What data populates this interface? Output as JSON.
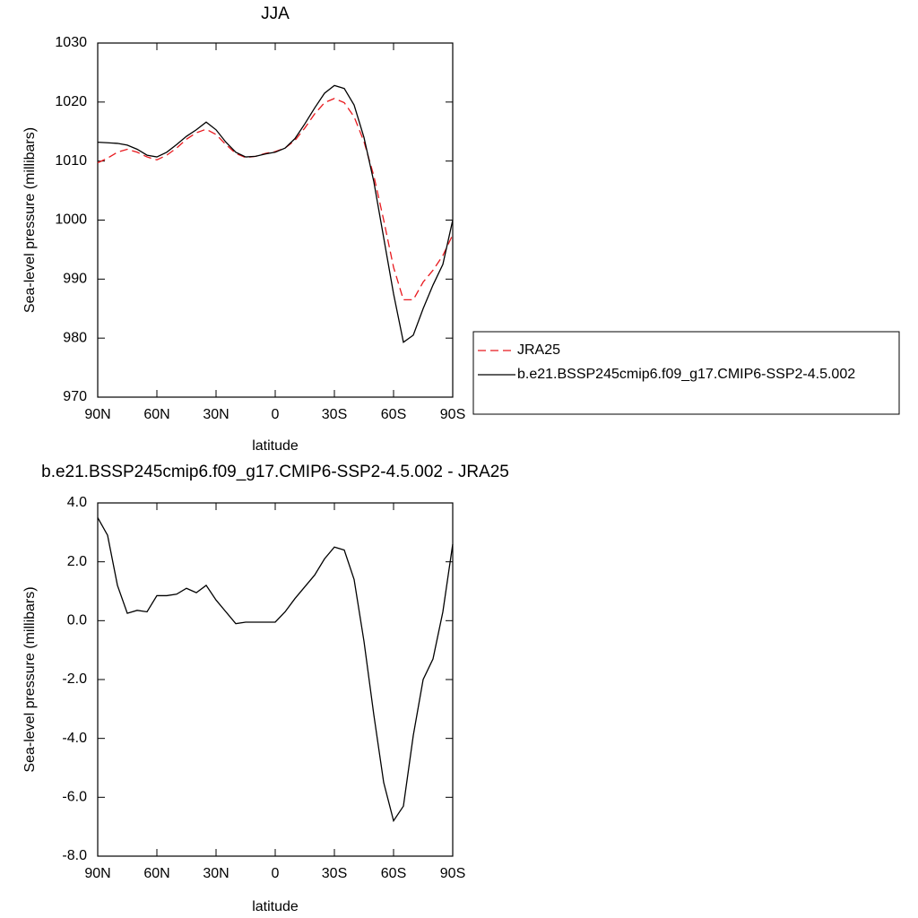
{
  "chart_data": [
    {
      "type": "line",
      "title": "JJA",
      "xlabel": "latitude",
      "ylabel": "Sea-level pressure (millibars)",
      "x": [
        90,
        85,
        80,
        75,
        70,
        65,
        60,
        55,
        50,
        45,
        40,
        35,
        30,
        25,
        20,
        15,
        10,
        5,
        0,
        -5,
        -10,
        -15,
        -20,
        -25,
        -30,
        -35,
        -40,
        -45,
        -50,
        -55,
        -60,
        -65,
        -70,
        -75,
        -80,
        -85,
        -90
      ],
      "xlim": [
        90,
        -90
      ],
      "xticks": [
        {
          "value": 90,
          "label": "90N"
        },
        {
          "value": 60,
          "label": "60N"
        },
        {
          "value": 30,
          "label": "30N"
        },
        0,
        {
          "value": -30,
          "label": "30S"
        },
        {
          "value": -60,
          "label": "60S"
        },
        {
          "value": -90,
          "label": "90S"
        }
      ],
      "ylim": [
        970,
        1030
      ],
      "yticks": [
        970,
        980,
        990,
        1000,
        1010,
        1020,
        1030
      ],
      "legend": "right",
      "series": [
        {
          "name": "JRA25",
          "color": "#e8191e",
          "style": "dashed",
          "values": [
            1009.7,
            1010.5,
            1011.5,
            1012.0,
            1011.5,
            1010.7,
            1010.2,
            1011.0,
            1012.2,
            1013.7,
            1014.8,
            1015.4,
            1014.5,
            1012.8,
            1011.3,
            1010.6,
            1010.8,
            1011.3,
            1011.6,
            1012.2,
            1013.5,
            1015.6,
            1018.0,
            1019.9,
            1020.6,
            1019.9,
            1017.5,
            1013.3,
            1007.5,
            1000.0,
            992.0,
            986.5,
            986.5,
            989.5,
            991.5,
            994.0,
            997.5
          ]
        },
        {
          "name": "b.e21.BSSP245cmip6.f09_g17.CMIP6-SSP2-4.5.002",
          "color": "#000000",
          "style": "solid",
          "values": [
            1013.2,
            1013.1,
            1013.0,
            1012.7,
            1012.0,
            1011.0,
            1010.7,
            1011.5,
            1012.8,
            1014.2,
            1015.3,
            1016.6,
            1015.3,
            1013.2,
            1011.5,
            1010.7,
            1010.8,
            1011.2,
            1011.5,
            1012.2,
            1013.8,
            1016.3,
            1019.0,
            1021.5,
            1022.8,
            1022.3,
            1019.5,
            1014.0,
            1006.5,
            997.0,
            987.5,
            979.3,
            980.5,
            985.0,
            989.0,
            992.5,
            1000.0
          ]
        }
      ]
    },
    {
      "type": "line",
      "title": "b.e21.BSSP245cmip6.f09_g17.CMIP6-SSP2-4.5.002 - JRA25",
      "xlabel": "latitude",
      "ylabel": "Sea-level pressure (millibars)",
      "x": [
        90,
        85,
        80,
        75,
        70,
        65,
        60,
        55,
        50,
        45,
        40,
        35,
        30,
        25,
        20,
        15,
        10,
        5,
        0,
        -5,
        -10,
        -15,
        -20,
        -25,
        -30,
        -35,
        -40,
        -45,
        -50,
        -55,
        -60,
        -65,
        -70,
        -75,
        -80,
        -85,
        -90
      ],
      "xlim": [
        90,
        -90
      ],
      "xticks": [
        {
          "value": 90,
          "label": "90N"
        },
        {
          "value": 60,
          "label": "60N"
        },
        {
          "value": 30,
          "label": "30N"
        },
        0,
        {
          "value": -30,
          "label": "30S"
        },
        {
          "value": -60,
          "label": "60S"
        },
        {
          "value": -90,
          "label": "90S"
        }
      ],
      "ylim": [
        -8,
        4
      ],
      "yticks": [
        {
          "value": -8,
          "label": "-8.0"
        },
        {
          "value": -6,
          "label": "-6.0"
        },
        {
          "value": -4,
          "label": "-4.0"
        },
        {
          "value": -2,
          "label": "-2.0"
        },
        {
          "value": 0,
          "label": "0.0"
        },
        {
          "value": 2,
          "label": "2.0"
        },
        {
          "value": 4,
          "label": "4.0"
        }
      ],
      "series": [
        {
          "color": "#000000",
          "style": "solid",
          "values": [
            3.5,
            2.9,
            1.2,
            0.25,
            0.35,
            0.3,
            0.85,
            0.85,
            0.9,
            1.1,
            0.95,
            1.2,
            0.7,
            0.3,
            -0.1,
            -0.05,
            -0.05,
            -0.05,
            -0.05,
            0.3,
            0.75,
            1.15,
            1.55,
            2.1,
            2.5,
            2.4,
            1.4,
            -0.7,
            -3.2,
            -5.5,
            -6.8,
            -6.3,
            -3.9,
            -2.0,
            -1.3,
            0.3,
            2.6
          ]
        }
      ]
    }
  ]
}
